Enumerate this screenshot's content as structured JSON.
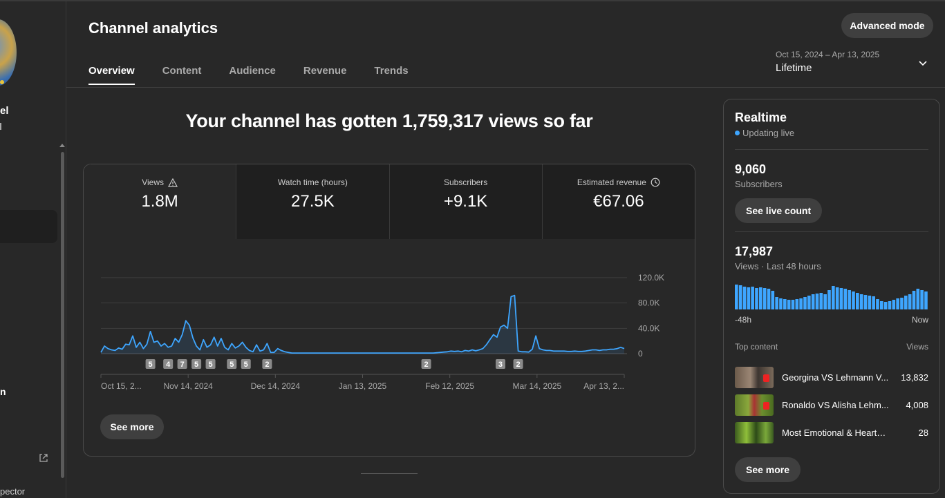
{
  "sidebar": {
    "channel_name_fragment": "el",
    "item_fragment": "n",
    "bottom_fragment": "pector"
  },
  "header": {
    "title": "Channel analytics",
    "advanced_button": "Advanced mode",
    "tabs": [
      {
        "label": "Overview",
        "active": true
      },
      {
        "label": "Content"
      },
      {
        "label": "Audience"
      },
      {
        "label": "Revenue"
      },
      {
        "label": "Trends"
      }
    ],
    "date_range": "Oct 15, 2024 – Apr 13, 2025",
    "date_label": "Lifetime"
  },
  "headline": "Your channel has gotten 1,759,317 views so far",
  "metrics": [
    {
      "label": "Views",
      "value": "1.8M",
      "icon": "warning-icon"
    },
    {
      "label": "Watch time (hours)",
      "value": "27.5K"
    },
    {
      "label": "Subscribers",
      "value": "+9.1K"
    },
    {
      "label": "Estimated revenue",
      "value": "€67.06",
      "icon": "clock-icon"
    }
  ],
  "see_more_main": "See more",
  "chart_data": {
    "type": "line",
    "title": "",
    "xlabel": "",
    "ylabel": "",
    "series": [
      {
        "values": [
          2000,
          12000,
          8000,
          6000,
          5000,
          9000,
          7000,
          15000,
          14000,
          28000,
          10000,
          18000,
          8000,
          15000,
          35000,
          18000,
          20000,
          12000,
          16000,
          10000,
          12000,
          24000,
          18000,
          30000,
          52000,
          45000,
          25000,
          12000,
          6000,
          22000,
          10000,
          14000,
          26000,
          12000,
          24000,
          10000,
          6000,
          16000,
          9000,
          12000,
          18000,
          10000,
          5000,
          3000,
          14000,
          4000,
          6000,
          16000,
          2000,
          2000,
          8000,
          5000,
          3000,
          2000,
          1000,
          1000,
          1000,
          1000,
          1000,
          1000,
          1000,
          1000,
          1000,
          1000,
          1000,
          1000,
          1000,
          1000,
          1000,
          1000,
          1000,
          1000,
          1000,
          1000,
          1000,
          1000,
          1000,
          1000,
          1000,
          1000,
          1000,
          1000,
          1000,
          1000,
          1000,
          1000,
          1000,
          1000,
          1000,
          1000,
          1000,
          1000,
          1000,
          1000,
          1000,
          1500,
          2000,
          2500,
          3000,
          4000,
          3500,
          4000,
          3000,
          5000,
          4000,
          6000,
          4500,
          6000,
          8000,
          14000,
          22000,
          30000,
          26000,
          42000,
          45000,
          40000,
          90000,
          92000,
          4000,
          3000,
          3000,
          2500,
          7000,
          28000,
          8000,
          6000,
          5000,
          5000,
          4000,
          4000,
          4000,
          4000,
          3500,
          3500,
          4000,
          3500,
          3500,
          4000,
          5000,
          6000,
          6000,
          5000,
          6000,
          6000,
          7000,
          7000,
          8000,
          10000,
          8000
        ],
        "color": "#3ea6ff"
      }
    ],
    "x_tick_labels": [
      "Oct 15, 2...",
      "Nov 14, 2024",
      "Dec 14, 2024",
      "Jan 13, 2025",
      "Feb 12, 2025",
      "Mar 14, 2025",
      "Apr 13, 2..."
    ],
    "y_tick_labels": [
      "120.0K",
      "80.0K",
      "40.0K",
      "0"
    ],
    "ylim": [
      0,
      120000
    ],
    "grid": true,
    "markers": [
      {
        "index": 14,
        "label": "5"
      },
      {
        "index": 19,
        "label": "4"
      },
      {
        "index": 23,
        "label": "7"
      },
      {
        "index": 27,
        "label": "5"
      },
      {
        "index": 31,
        "label": "5"
      },
      {
        "index": 37,
        "label": "5"
      },
      {
        "index": 41,
        "label": "5"
      },
      {
        "index": 47,
        "label": "2"
      },
      {
        "index": 92,
        "label": "2"
      },
      {
        "index": 113,
        "label": "3"
      },
      {
        "index": 118,
        "label": "2"
      }
    ]
  },
  "realtime": {
    "title": "Realtime",
    "live_label": "Updating live",
    "subscribers_value": "9,060",
    "subscribers_label": "Subscribers",
    "live_count_button": "See live count",
    "views_value": "17,987",
    "views_label": "Views · Last 48 hours",
    "bars": [
      36,
      35,
      33,
      32,
      33,
      31,
      32,
      31,
      30,
      27,
      18,
      16,
      15,
      14,
      14,
      15,
      16,
      18,
      20,
      22,
      23,
      24,
      22,
      28,
      34,
      32,
      31,
      30,
      28,
      26,
      24,
      22,
      21,
      20,
      19,
      15,
      12,
      11,
      12,
      14,
      16,
      17,
      20,
      22,
      27,
      30,
      28,
      26
    ],
    "axis_left": "-48h",
    "axis_right": "Now",
    "top_content_label": "Top content",
    "views_col_label": "Views",
    "top_content": [
      {
        "title": "Georgina VS Lehmann V...",
        "views": "13,832"
      },
      {
        "title": "Ronaldo VS Alisha Lehm...",
        "views": "4,008"
      },
      {
        "title": "Most Emotional & Heartbrea...",
        "views": "28"
      }
    ],
    "see_more": "See more"
  }
}
